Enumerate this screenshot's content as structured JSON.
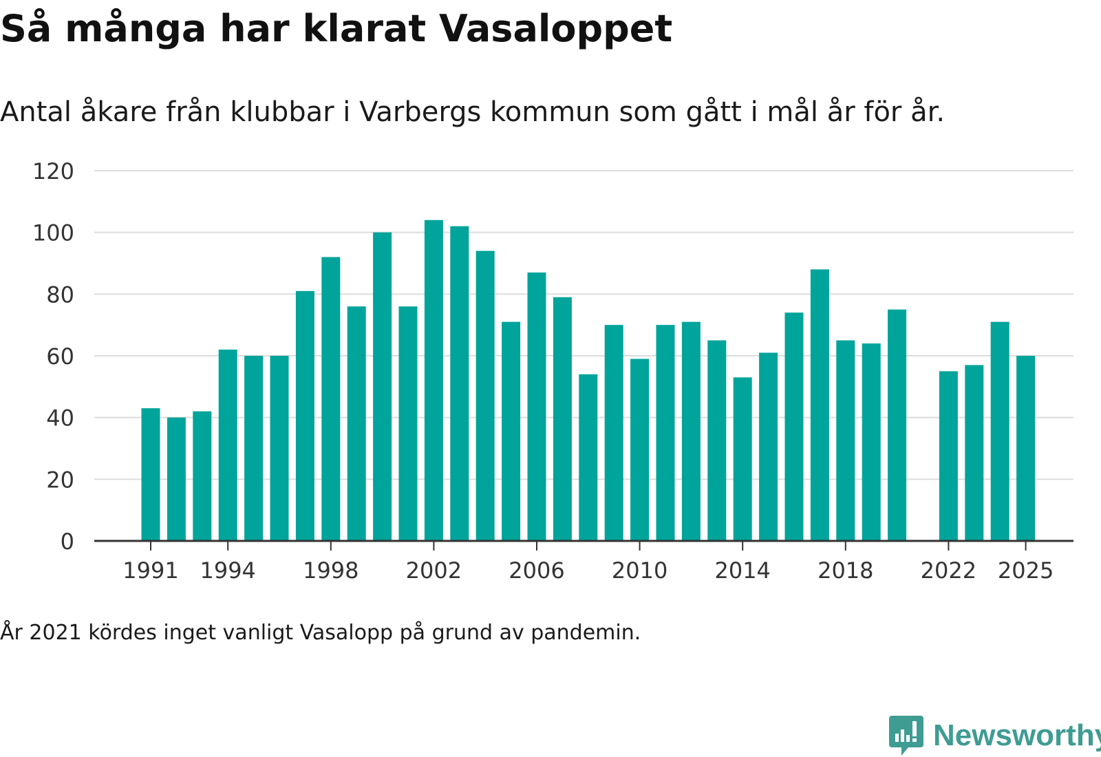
{
  "chart_data": {
    "type": "bar",
    "title": "Så många har klarat Vasaloppet",
    "subtitle": "Antal åkare från klubbar i Varbergs kommun som gått i mål år för år.",
    "note": "År 2021 kördes inget vanligt Vasalopp på grund av pandemin.",
    "x": [
      1991,
      1992,
      1993,
      1994,
      1995,
      1996,
      1997,
      1998,
      1999,
      2000,
      2001,
      2002,
      2003,
      2004,
      2005,
      2006,
      2007,
      2008,
      2009,
      2010,
      2011,
      2012,
      2013,
      2014,
      2015,
      2016,
      2017,
      2018,
      2019,
      2020,
      2021,
      2022,
      2023,
      2024,
      2025
    ],
    "values": [
      43,
      40,
      42,
      62,
      60,
      60,
      81,
      92,
      76,
      100,
      76,
      104,
      102,
      94,
      71,
      87,
      79,
      54,
      70,
      59,
      70,
      71,
      65,
      53,
      61,
      74,
      88,
      65,
      64,
      75,
      null,
      55,
      57,
      71,
      60
    ],
    "x_ticks": [
      "1991",
      "1994",
      "1998",
      "2002",
      "2006",
      "2010",
      "2014",
      "2018",
      "2022",
      "2025"
    ],
    "y_ticks": [
      "0",
      "20",
      "40",
      "60",
      "80",
      "100",
      "120"
    ],
    "ylim": [
      0,
      120
    ],
    "xlabel": "",
    "ylabel": "",
    "bar_color": "#00a49a",
    "grid": true
  },
  "logo": {
    "name": "Newsworthy",
    "color": "#3f9c93"
  }
}
